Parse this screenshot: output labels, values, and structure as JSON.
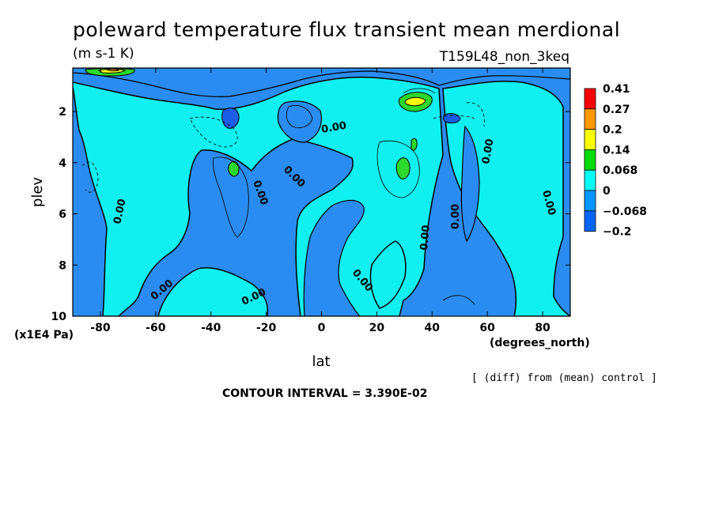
{
  "chart_data": {
    "type": "heatmap",
    "title": "poleward temperature flux transient mean merdional",
    "units": "(m s-1 K)",
    "run_label": "T159L48_non_3keq",
    "xlabel": "lat",
    "ylabel": "plev",
    "x_units": "(degrees_north)",
    "y_units": "(x1E4 Pa)",
    "xlim": [
      -90,
      90
    ],
    "ylim": [
      10,
      0.3
    ],
    "x_ticks": [
      "-80",
      "-60",
      "-40",
      "-20",
      "0",
      "20",
      "40",
      "60",
      "80"
    ],
    "x_tick_values": [
      -80,
      -60,
      -40,
      -20,
      0,
      20,
      40,
      60,
      80
    ],
    "y_ticks": [
      "2",
      "4",
      "6",
      "8",
      "10"
    ],
    "y_tick_values": [
      2,
      4,
      6,
      8,
      10
    ],
    "note": "[ (diff) from (mean) control ]",
    "contour_interval": "CONTOUR INTERVAL = 3.390E-02",
    "contour_labels": [
      "0.00",
      "0.00",
      "0.00",
      "0.00",
      "0.00",
      "0.00",
      "0.00",
      "0.00",
      "0.00",
      "0.00",
      "0.00"
    ],
    "colorbar": {
      "labels": [
        "0.41",
        "0.27",
        "0.2",
        "0.14",
        "0.068",
        "0",
        "−0.068",
        "−0.2"
      ],
      "colors": [
        "#ff0000",
        "#ff9900",
        "#ffff00",
        "#00dd00",
        "#00ffff",
        "#0099ff",
        "#0066ff"
      ]
    },
    "fill_colors": {
      "negative": "#2a8cf0",
      "strong_negative": "#1a5ee8",
      "near_zero_positive": "#10f0f0",
      "moderate_positive": "#2bd82b",
      "high_positive": "#ffff00",
      "higher_positive": "#ff9900"
    },
    "grid": false
  }
}
